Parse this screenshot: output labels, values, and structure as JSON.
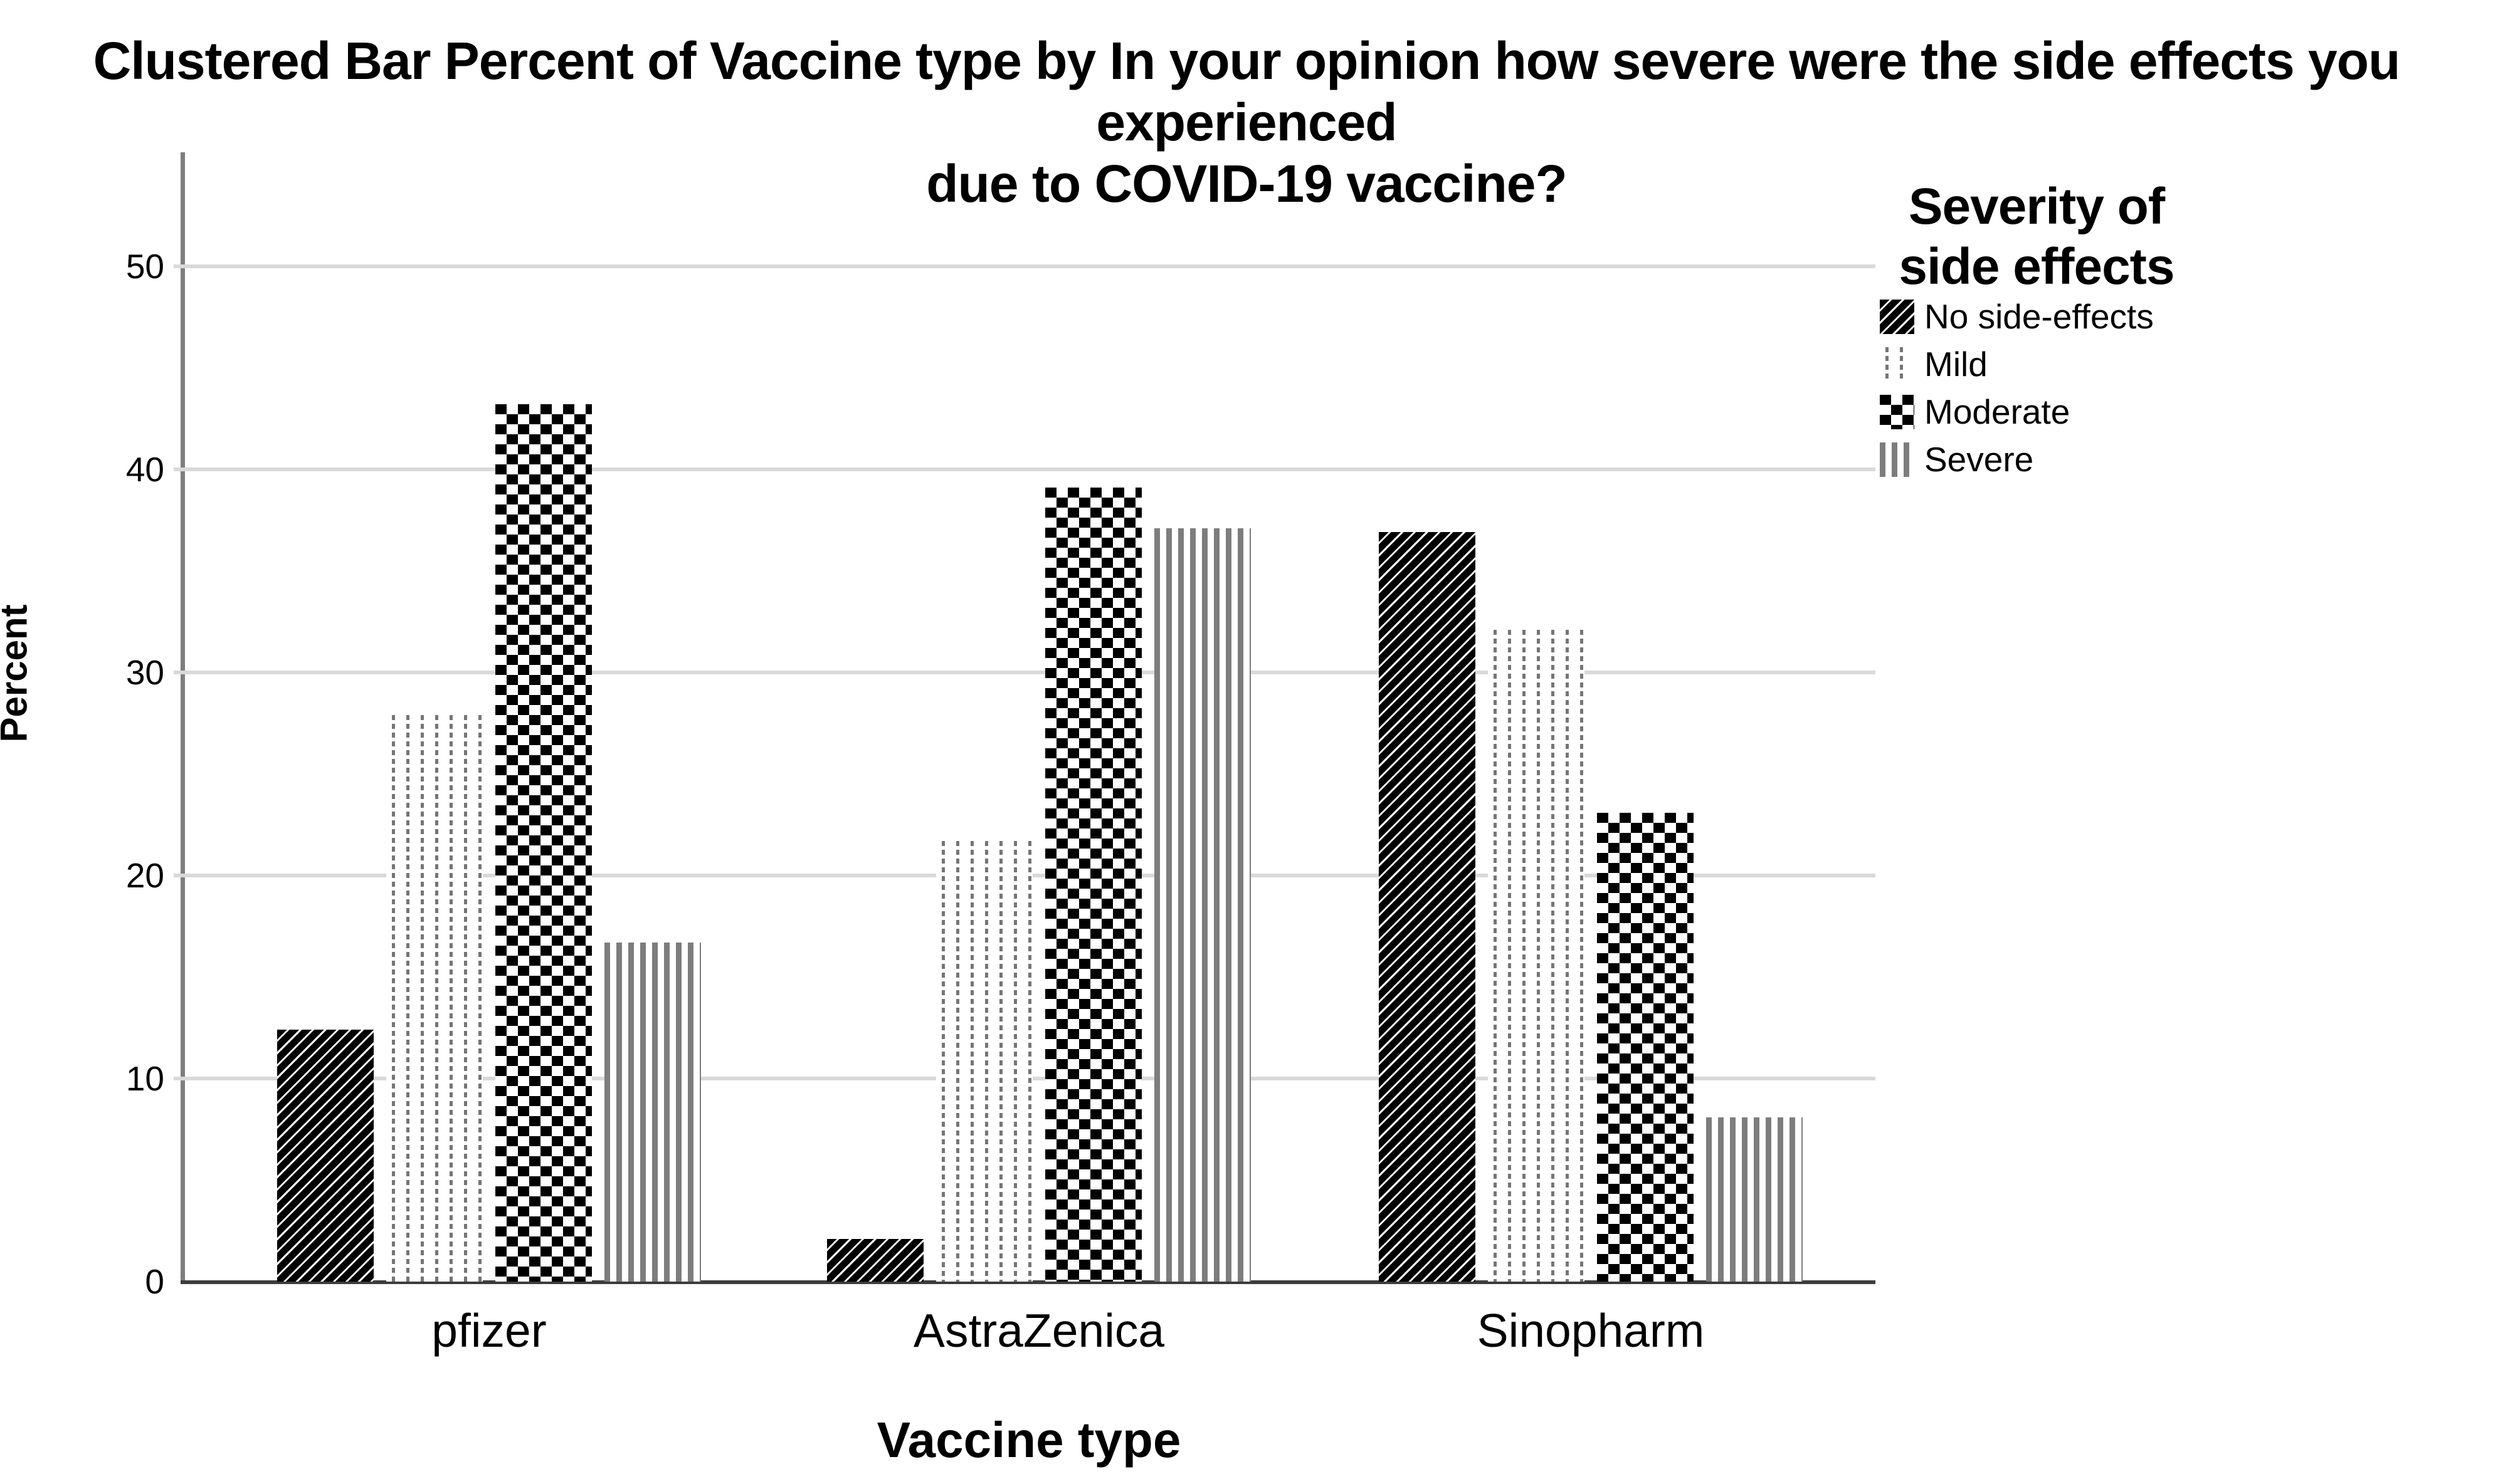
{
  "chart_data": {
    "type": "bar",
    "title_line1": "Clustered Bar Percent of Vaccine type by In your opinion how severe were the side effects you experienced",
    "title_line2": "due to COVID-19 vaccine?",
    "xlabel": "Vaccine type",
    "ylabel": "Percent",
    "categories": [
      "pfizer",
      "AstraZenica",
      "Sinopharm"
    ],
    "series": [
      {
        "name": "No side-effects",
        "pattern": "diagonal-stripes",
        "values": [
          12.4,
          2.1,
          36.9
        ]
      },
      {
        "name": "Mild",
        "pattern": "dotted-columns",
        "values": [
          27.9,
          21.7,
          32.1
        ]
      },
      {
        "name": "Moderate",
        "pattern": "checkerboard",
        "values": [
          43.2,
          39.1,
          23.1
        ]
      },
      {
        "name": "Severe",
        "pattern": "vertical-stripes",
        "values": [
          16.7,
          37.1,
          8.1
        ]
      }
    ],
    "y_ticks": [
      0,
      10,
      20,
      30,
      40,
      50
    ],
    "ylim": [
      0,
      55.6
    ],
    "grid": "horizontal",
    "legend_position": "right",
    "legend_title_line1": "Severity of",
    "legend_title_line2": "side effects"
  },
  "colors": {
    "background": "#ffffff",
    "text": "#000000",
    "gridline": "#d9d9d9",
    "y_axis_line": "#7e7e7e",
    "x_axis_line": "#3d3d3d",
    "pattern_gray": "#757575",
    "bar_black": "#000000"
  }
}
